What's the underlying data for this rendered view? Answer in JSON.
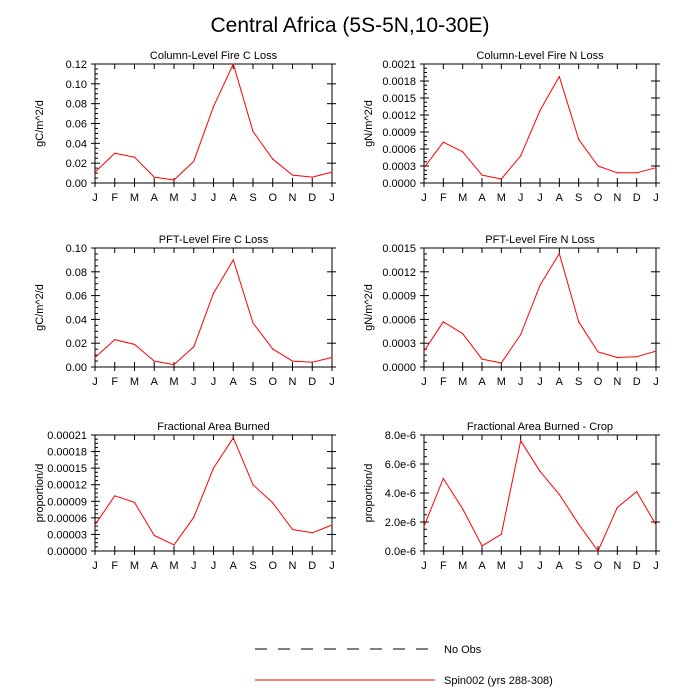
{
  "page": {
    "title": "Central Africa (5S-5N,10-30E)"
  },
  "legend": {
    "items": [
      {
        "label": "No Obs",
        "color": "#000000",
        "dash": true
      },
      {
        "label": "Spin002 (yrs 288-308)",
        "color": "#ff0000",
        "dash": false
      }
    ]
  },
  "chart_data": [
    {
      "type": "line",
      "title": "Column-Level Fire C Loss",
      "xlabel": "",
      "ylabel": "gC/m^2/d",
      "categories": [
        "J",
        "F",
        "M",
        "A",
        "M",
        "J",
        "J",
        "A",
        "S",
        "O",
        "N",
        "D",
        "J"
      ],
      "ylim": [
        0,
        0.12
      ],
      "yticks": [
        "0.00",
        "0.02",
        "0.04",
        "0.06",
        "0.08",
        "0.10",
        "0.12"
      ],
      "series": [
        {
          "values": [
            0.011,
            0.03,
            0.026,
            0.006,
            0.003,
            0.022,
            0.077,
            0.12,
            0.052,
            0.024,
            0.008,
            0.006,
            0.011
          ]
        }
      ]
    },
    {
      "type": "line",
      "title": "Column-Level Fire N Loss",
      "xlabel": "",
      "ylabel": "gN/m^2/d",
      "categories": [
        "J",
        "F",
        "M",
        "A",
        "M",
        "J",
        "J",
        "A",
        "S",
        "O",
        "N",
        "D",
        "J"
      ],
      "ylim": [
        0,
        0.0021
      ],
      "yticks": [
        "0.0000",
        "0.0003",
        "0.0006",
        "0.0009",
        "0.0012",
        "0.0015",
        "0.0018",
        "0.0021"
      ],
      "series": [
        {
          "values": [
            0.00027,
            0.00072,
            0.00055,
            0.00014,
            7e-05,
            0.00048,
            0.00128,
            0.00188,
            0.00077,
            0.0003,
            0.00018,
            0.00018,
            0.00027
          ]
        }
      ]
    },
    {
      "type": "line",
      "title": "PFT-Level Fire C Loss",
      "xlabel": "",
      "ylabel": "gC/m^2/d",
      "categories": [
        "J",
        "F",
        "M",
        "A",
        "M",
        "J",
        "J",
        "A",
        "S",
        "O",
        "N",
        "D",
        "J"
      ],
      "ylim": [
        0,
        0.1
      ],
      "yticks": [
        "0.00",
        "0.02",
        "0.04",
        "0.06",
        "0.08",
        "0.10"
      ],
      "series": [
        {
          "values": [
            0.008,
            0.023,
            0.019,
            0.005,
            0.002,
            0.017,
            0.062,
            0.09,
            0.037,
            0.015,
            0.005,
            0.004,
            0.008
          ]
        }
      ]
    },
    {
      "type": "line",
      "title": "PFT-Level Fire N Loss",
      "xlabel": "",
      "ylabel": "gN/m^2/d",
      "categories": [
        "J",
        "F",
        "M",
        "A",
        "M",
        "J",
        "J",
        "A",
        "S",
        "O",
        "N",
        "D",
        "J"
      ],
      "ylim": [
        0,
        0.0015
      ],
      "yticks": [
        "0.0000",
        "0.0003",
        "0.0006",
        "0.0009",
        "0.0012",
        "0.0015"
      ],
      "series": [
        {
          "values": [
            0.0002,
            0.00057,
            0.00042,
            0.0001,
            5e-05,
            0.00041,
            0.00103,
            0.00143,
            0.00057,
            0.00019,
            0.00012,
            0.00013,
            0.0002
          ]
        }
      ]
    },
    {
      "type": "line",
      "title": "Fractional Area Burned",
      "xlabel": "",
      "ylabel": "proportion/d",
      "categories": [
        "J",
        "F",
        "M",
        "A",
        "M",
        "J",
        "J",
        "A",
        "S",
        "O",
        "N",
        "D",
        "J"
      ],
      "ylim": [
        0,
        0.00021
      ],
      "yticks": [
        "0.00000",
        "0.00003",
        "0.00006",
        "0.00009",
        "0.00012",
        "0.00015",
        "0.00018",
        "0.00021"
      ],
      "series": [
        {
          "values": [
            4.7e-05,
            0.0001,
            8.8e-05,
            2.8e-05,
            1.1e-05,
            6.1e-05,
            0.00015,
            0.000205,
            0.00012,
            8.7e-05,
            3.9e-05,
            3.3e-05,
            4.7e-05
          ]
        }
      ]
    },
    {
      "type": "line",
      "title": "Fractional Area Burned - Crop",
      "xlabel": "",
      "ylabel": "proportion/d",
      "categories": [
        "J",
        "F",
        "M",
        "A",
        "M",
        "J",
        "J",
        "A",
        "S",
        "O",
        "N",
        "D",
        "J"
      ],
      "ylim": [
        0,
        8e-06
      ],
      "yticks": [
        "0.0e-6",
        "2.0e-6",
        "4.0e-6",
        "6.0e-6",
        "8.0e-6"
      ],
      "series": [
        {
          "values": [
            1.7e-06,
            5e-06,
            2.9e-06,
            3.5e-07,
            1.15e-06,
            7.6e-06,
            5.5e-06,
            3.9e-06,
            1.85e-06,
            0.0,
            3e-06,
            4.1e-06,
            1.8e-06
          ]
        }
      ]
    }
  ]
}
